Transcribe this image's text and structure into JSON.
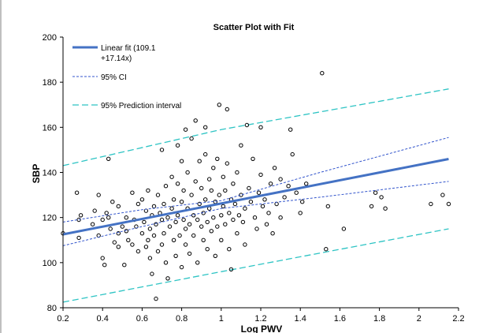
{
  "chart_data": {
    "type": "scatter",
    "title": "Scatter Plot with Fit",
    "xlabel": "Log PWV",
    "ylabel": "SBP",
    "xlim": [
      0.2,
      2.2
    ],
    "ylim": [
      80,
      200
    ],
    "x_ticks": [
      "0.2",
      "0.4",
      "0.6",
      "0.8",
      "1",
      "1.2",
      "1.4",
      "1.6",
      "1.8",
      "2",
      "2.2"
    ],
    "y_ticks": [
      "80",
      "100",
      "120",
      "140",
      "160",
      "180",
      "200"
    ],
    "grid": false,
    "legend_position": "top-left",
    "legend": {
      "fit": "Linear fit (109.1",
      "fit_line2": "+17.14x)",
      "ci": "95% CI",
      "pi": "95% Prediction interval"
    },
    "colors": {
      "fit": "#4472c4",
      "ci": "#3355cc",
      "pi": "#2ec4c4",
      "points": "#000000"
    },
    "fit_line": {
      "intercept": 109.1,
      "slope": 17.14,
      "x_range": [
        0.2,
        2.15
      ]
    },
    "ci_upper": [
      [
        0.2,
        118
      ],
      [
        0.6,
        123.5
      ],
      [
        1.0,
        127.5
      ],
      [
        1.5,
        140
      ],
      [
        2.15,
        155.5
      ]
    ],
    "ci_lower": [
      [
        0.2,
        107.5
      ],
      [
        0.6,
        116
      ],
      [
        1.0,
        124
      ],
      [
        1.5,
        129
      ],
      [
        2.15,
        136
      ]
    ],
    "pi_upper": [
      [
        0.2,
        143
      ],
      [
        1.0,
        159
      ],
      [
        2.15,
        177
      ]
    ],
    "pi_lower": [
      [
        0.2,
        82.5
      ],
      [
        1.0,
        96
      ],
      [
        2.15,
        115
      ]
    ],
    "points": [
      [
        0.2,
        113
      ],
      [
        0.27,
        131
      ],
      [
        0.28,
        119
      ],
      [
        0.29,
        121
      ],
      [
        0.28,
        111
      ],
      [
        0.35,
        117
      ],
      [
        0.36,
        123
      ],
      [
        0.38,
        130
      ],
      [
        0.38,
        112
      ],
      [
        0.4,
        102
      ],
      [
        0.4,
        119
      ],
      [
        0.41,
        99
      ],
      [
        0.42,
        122
      ],
      [
        0.43,
        146
      ],
      [
        0.43,
        120
      ],
      [
        0.44,
        115
      ],
      [
        0.45,
        127
      ],
      [
        0.46,
        109
      ],
      [
        0.48,
        107
      ],
      [
        0.48,
        113
      ],
      [
        0.48,
        125
      ],
      [
        0.5,
        116
      ],
      [
        0.51,
        99
      ],
      [
        0.52,
        114
      ],
      [
        0.52,
        120
      ],
      [
        0.53,
        110
      ],
      [
        0.55,
        108
      ],
      [
        0.55,
        131
      ],
      [
        0.56,
        119
      ],
      [
        0.57,
        116
      ],
      [
        0.58,
        126
      ],
      [
        0.58,
        105
      ],
      [
        0.6,
        128
      ],
      [
        0.6,
        113
      ],
      [
        0.61,
        118
      ],
      [
        0.62,
        123
      ],
      [
        0.62,
        107
      ],
      [
        0.63,
        132
      ],
      [
        0.63,
        110
      ],
      [
        0.64,
        102
      ],
      [
        0.64,
        115
      ],
      [
        0.65,
        121
      ],
      [
        0.65,
        95
      ],
      [
        0.66,
        125
      ],
      [
        0.66,
        112
      ],
      [
        0.67,
        117
      ],
      [
        0.67,
        84
      ],
      [
        0.68,
        130
      ],
      [
        0.68,
        105
      ],
      [
        0.69,
        122
      ],
      [
        0.7,
        119
      ],
      [
        0.7,
        108
      ],
      [
        0.7,
        150
      ],
      [
        0.71,
        113
      ],
      [
        0.71,
        126
      ],
      [
        0.72,
        134
      ],
      [
        0.72,
        100
      ],
      [
        0.73,
        120
      ],
      [
        0.73,
        93
      ],
      [
        0.74,
        116
      ],
      [
        0.75,
        124
      ],
      [
        0.75,
        138
      ],
      [
        0.76,
        110
      ],
      [
        0.76,
        128
      ],
      [
        0.77,
        118
      ],
      [
        0.77,
        103
      ],
      [
        0.78,
        135
      ],
      [
        0.78,
        152
      ],
      [
        0.78,
        121
      ],
      [
        0.79,
        112
      ],
      [
        0.8,
        127
      ],
      [
        0.8,
        145
      ],
      [
        0.8,
        98
      ],
      [
        0.81,
        119
      ],
      [
        0.81,
        132
      ],
      [
        0.82,
        115
      ],
      [
        0.82,
        108
      ],
      [
        0.83,
        124
      ],
      [
        0.83,
        140
      ],
      [
        0.84,
        117
      ],
      [
        0.84,
        104
      ],
      [
        0.85,
        130
      ],
      [
        0.85,
        155
      ],
      [
        0.86,
        121
      ],
      [
        0.86,
        112
      ],
      [
        0.87,
        163
      ],
      [
        0.87,
        136
      ],
      [
        0.88,
        119
      ],
      [
        0.88,
        100
      ],
      [
        0.89,
        126
      ],
      [
        0.89,
        145
      ],
      [
        0.9,
        116
      ],
      [
        0.9,
        133
      ],
      [
        0.91,
        110
      ],
      [
        0.91,
        122
      ],
      [
        0.92,
        128
      ],
      [
        0.92,
        148
      ],
      [
        0.93,
        118
      ],
      [
        0.93,
        106
      ],
      [
        0.94,
        137
      ],
      [
        0.94,
        124
      ],
      [
        0.95,
        114
      ],
      [
        0.95,
        132
      ],
      [
        0.96,
        120
      ],
      [
        0.96,
        142
      ],
      [
        0.97,
        103
      ],
      [
        0.97,
        127
      ],
      [
        0.98,
        116
      ],
      [
        0.98,
        146
      ],
      [
        0.99,
        130
      ],
      [
        0.99,
        170
      ],
      [
        1.0,
        121
      ],
      [
        1.0,
        110
      ],
      [
        1.01,
        138
      ],
      [
        1.01,
        125
      ],
      [
        1.02,
        117
      ],
      [
        1.02,
        132
      ],
      [
        1.03,
        168
      ],
      [
        1.03,
        144
      ],
      [
        1.04,
        122
      ],
      [
        1.04,
        106
      ],
      [
        1.05,
        128
      ],
      [
        1.05,
        97
      ],
      [
        1.06,
        135
      ],
      [
        1.06,
        119
      ],
      [
        1.07,
        126
      ],
      [
        1.08,
        140
      ],
      [
        1.08,
        113
      ],
      [
        1.09,
        121
      ],
      [
        1.1,
        130
      ],
      [
        1.1,
        152
      ],
      [
        1.11,
        118
      ],
      [
        1.12,
        124
      ],
      [
        1.12,
        108
      ],
      [
        1.13,
        161
      ],
      [
        1.14,
        133
      ],
      [
        1.15,
        127
      ],
      [
        1.16,
        146
      ],
      [
        1.17,
        120
      ],
      [
        1.18,
        115
      ],
      [
        1.19,
        131
      ],
      [
        1.2,
        139
      ],
      [
        1.21,
        125
      ],
      [
        1.22,
        128
      ],
      [
        1.23,
        117
      ],
      [
        1.24,
        122
      ],
      [
        1.25,
        135
      ],
      [
        1.26,
        113
      ],
      [
        1.27,
        142
      ],
      [
        1.28,
        126
      ],
      [
        1.3,
        137
      ],
      [
        1.3,
        120
      ],
      [
        1.32,
        129
      ],
      [
        1.34,
        134
      ],
      [
        1.35,
        159
      ],
      [
        1.36,
        148
      ],
      [
        1.38,
        131
      ],
      [
        1.4,
        122
      ],
      [
        1.41,
        127
      ],
      [
        1.43,
        135
      ],
      [
        1.51,
        184
      ],
      [
        1.53,
        106
      ],
      [
        1.54,
        125
      ],
      [
        1.62,
        115
      ],
      [
        1.76,
        125
      ],
      [
        1.78,
        131
      ],
      [
        1.81,
        129
      ],
      [
        1.83,
        124
      ],
      [
        2.06,
        126
      ],
      [
        2.12,
        130
      ],
      [
        2.15,
        126
      ],
      [
        1.2,
        160
      ],
      [
        0.92,
        160
      ],
      [
        0.82,
        159
      ]
    ]
  }
}
